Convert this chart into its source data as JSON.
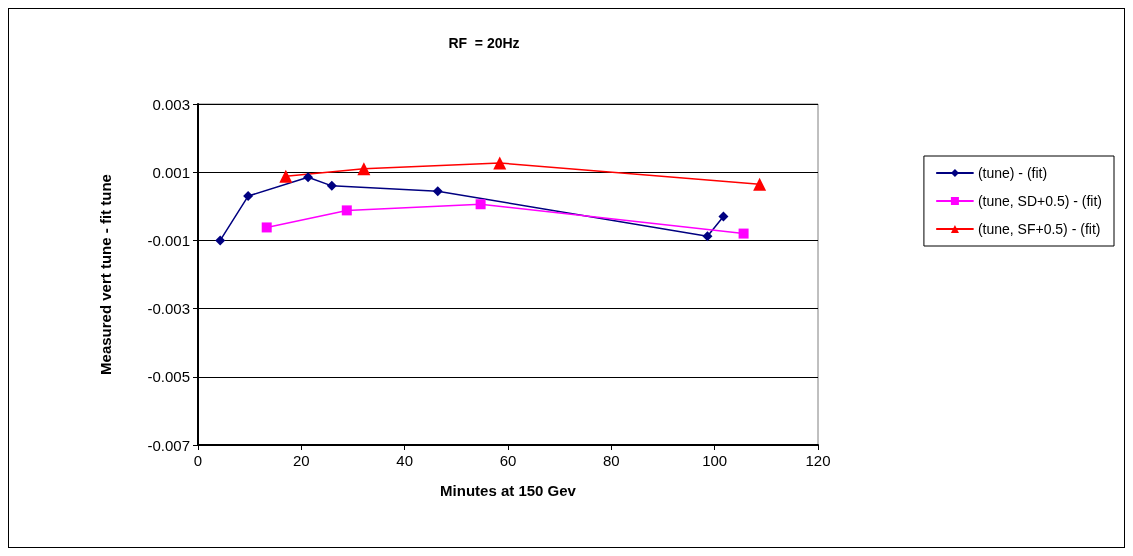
{
  "chart_data": {
    "type": "line",
    "title": "RF  = 20Hz",
    "xlabel": "Minutes at 150 Gev",
    "ylabel": "Measured vert tune - fit tune",
    "xlim": [
      0,
      120
    ],
    "xticks": [
      0,
      20,
      40,
      60,
      80,
      100,
      120
    ],
    "ylim": [
      -0.007,
      0.003
    ],
    "yticks": [
      -0.007,
      -0.005,
      -0.003,
      -0.001,
      0.001,
      0.003
    ],
    "grid": "y",
    "legend": "right",
    "line_style": "solid",
    "series": [
      {
        "name": "(tune) - (fit)",
        "color": "#000080",
        "marker": "diamond",
        "x": [
          4.3,
          9.7,
          21.3,
          25.9,
          46.4,
          98.6,
          101.7
        ],
        "values": [
          -0.001,
          0.0003,
          0.00085,
          0.0006,
          0.00044,
          -0.00088,
          -0.0003
        ]
      },
      {
        "name": "(tune, SD+0.5) - (fit)",
        "color": "#ff00ff",
        "marker": "square",
        "x": [
          13.3,
          28.8,
          54.7,
          105.6
        ],
        "values": [
          -0.00062,
          -0.00012,
          6e-05,
          -0.0008
        ]
      },
      {
        "name": "(tune, SF+0.5) - (fit)",
        "color": "#ff0000",
        "marker": "triangle",
        "x": [
          17.0,
          32.1,
          58.4,
          108.7
        ],
        "values": [
          0.00088,
          0.0011,
          0.00127,
          0.00065
        ]
      }
    ]
  }
}
